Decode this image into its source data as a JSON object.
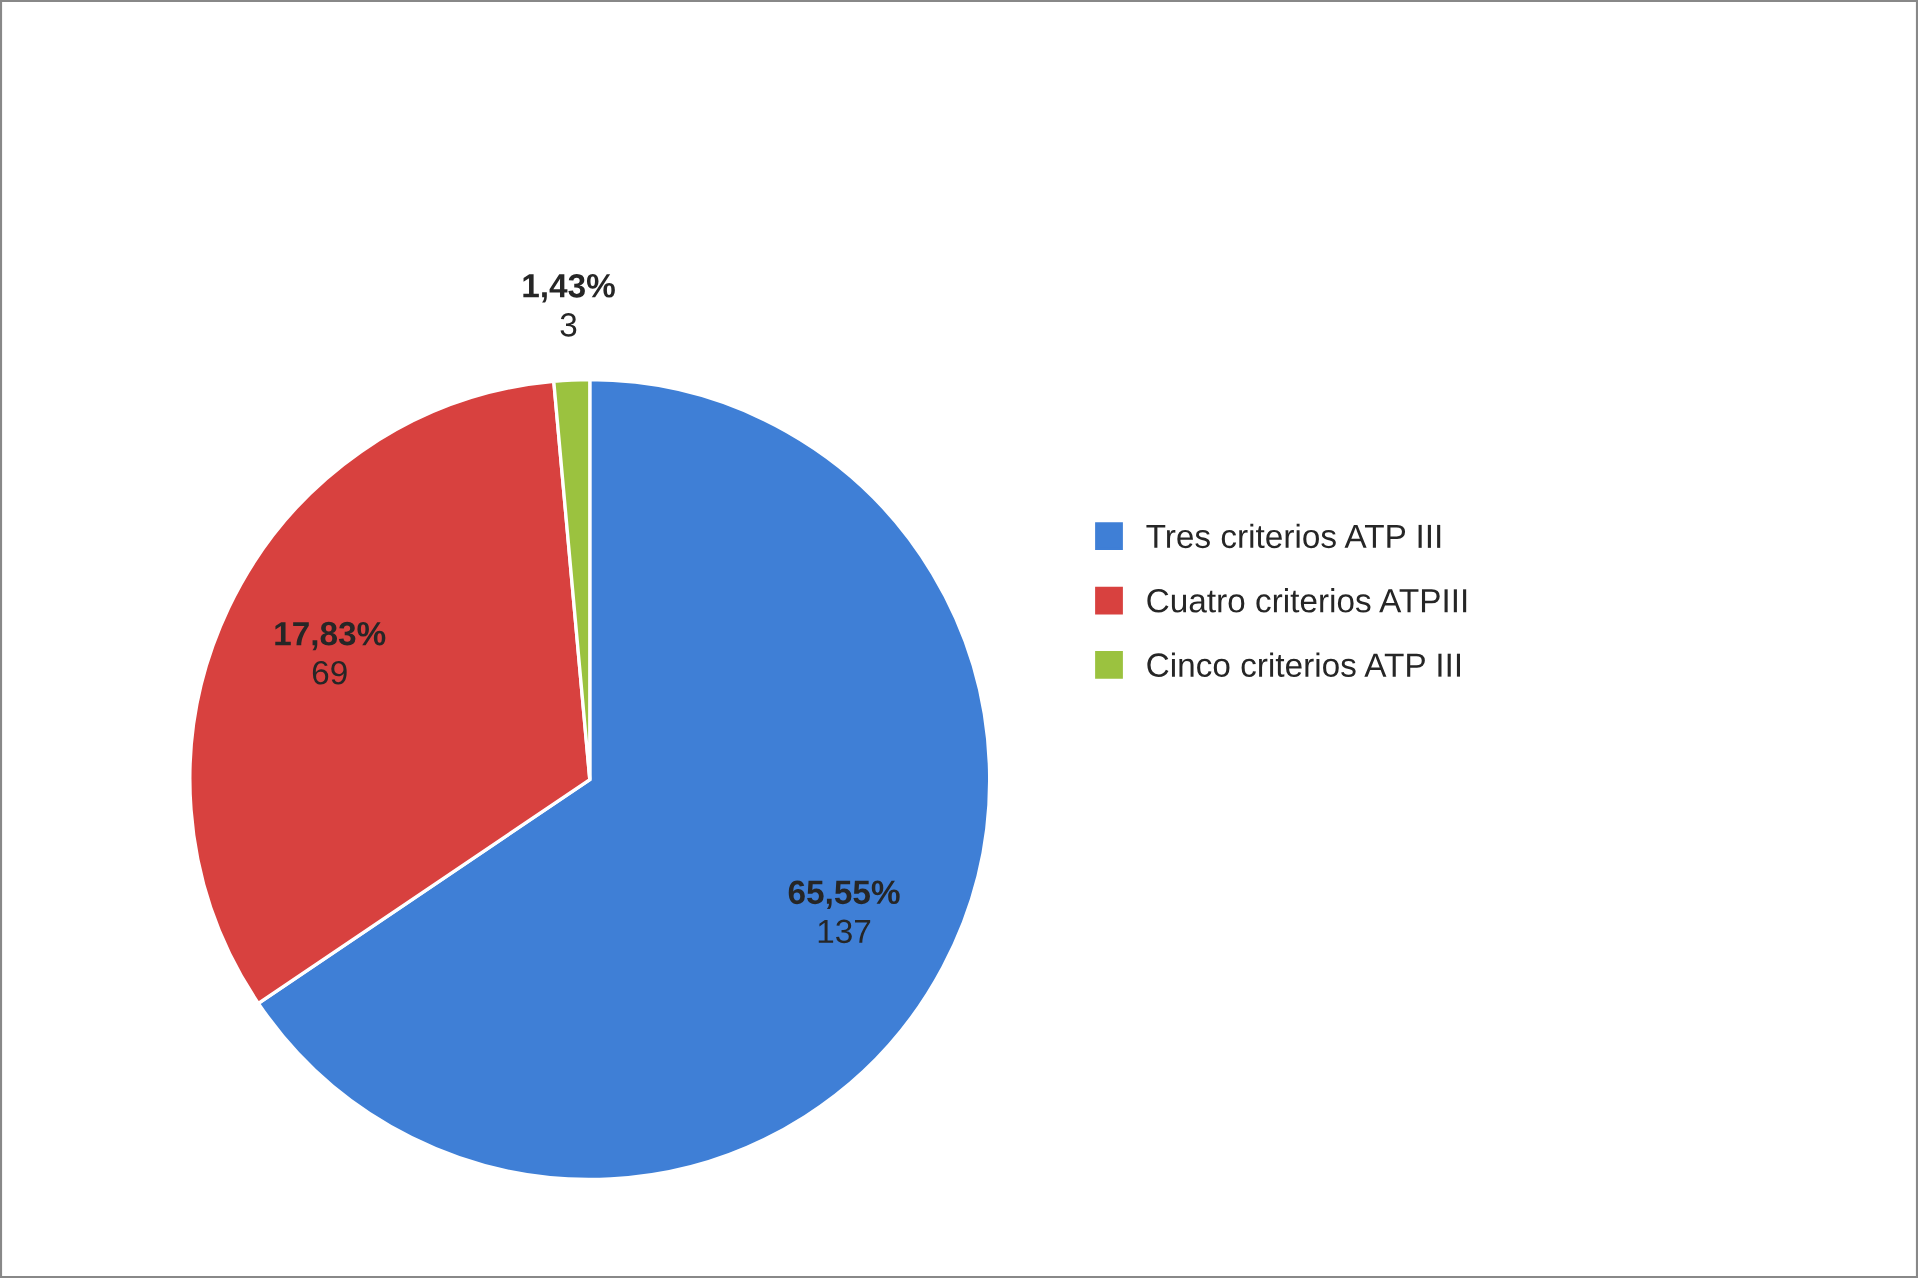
{
  "chart_data": {
    "type": "pie",
    "categories": [
      "Tres criterios ATP III",
      "Cuatro criterios ATPIII",
      "Cinco criterios ATP III"
    ],
    "values": [
      137,
      69,
      3
    ],
    "value_labels": [
      "65,55%\n137",
      "17,83%\n69",
      "1,43%\n3"
    ],
    "colors": [
      "#3f7fd6",
      "#d8413f",
      "#9bc23f"
    ],
    "legend": "right"
  }
}
